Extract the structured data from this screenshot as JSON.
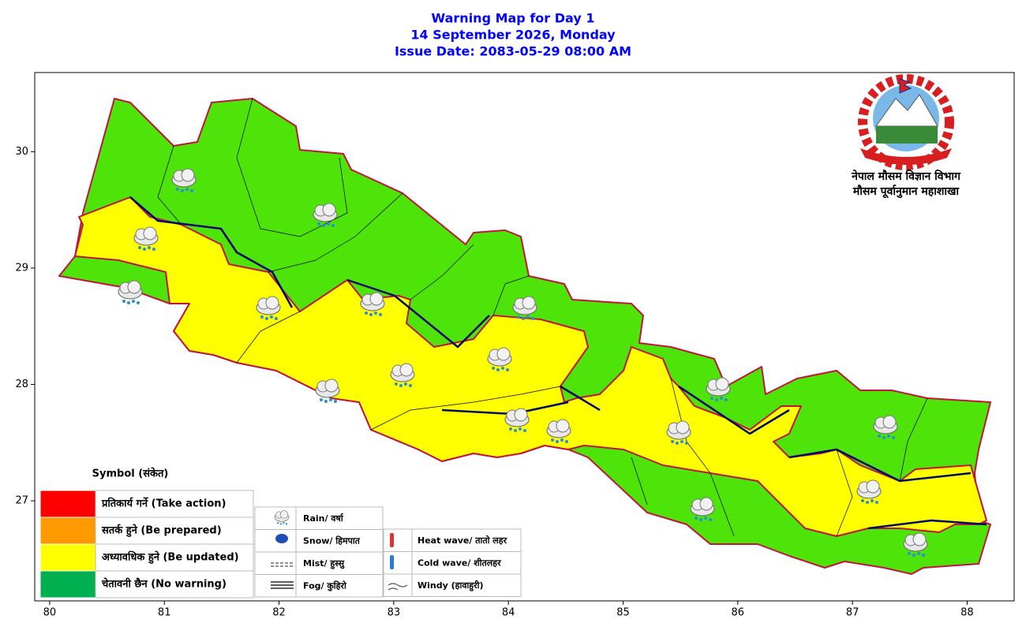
{
  "header": {
    "title": "Warning Map for Day 1",
    "date": "14 September 2026, Monday",
    "issue": "Issue Date: 2083-05-29 08:00 AM"
  },
  "map": {
    "xlim": [
      79.87,
      88.41
    ],
    "ylim": [
      26.14,
      30.68
    ],
    "xticks": [
      80,
      81,
      82,
      83,
      84,
      85,
      86,
      87,
      88
    ],
    "yticks": [
      27,
      28,
      29,
      30
    ]
  },
  "agency": {
    "line1": "नेपाल मौसम विज्ञान विभाग",
    "line2": "मौसम पूर्वानुमान महाशाखा"
  },
  "legend": {
    "title": "Symbol (संकेत)",
    "levels": [
      {
        "label": "प्रतिकार्य गर्ने (Take action)",
        "color": "#ff0000"
      },
      {
        "label": "सतर्क हुने (Be prepared)",
        "color": "#ff9900"
      },
      {
        "label": "अध्यावधिक हुने (Be updated)",
        "color": "#ffff00"
      },
      {
        "label": "चेतावनी छैन (No warning)",
        "color": "#00b050"
      }
    ],
    "symbols": [
      "Rain/ वर्षा",
      "Snow/ हिमपात",
      "Mist/ हुस्सु",
      "Fog/ कुहिरो",
      "Heat wave/ तातो लहर",
      "Cold wave/ शीतलहर",
      "Windy (हावाहुरी)"
    ]
  }
}
